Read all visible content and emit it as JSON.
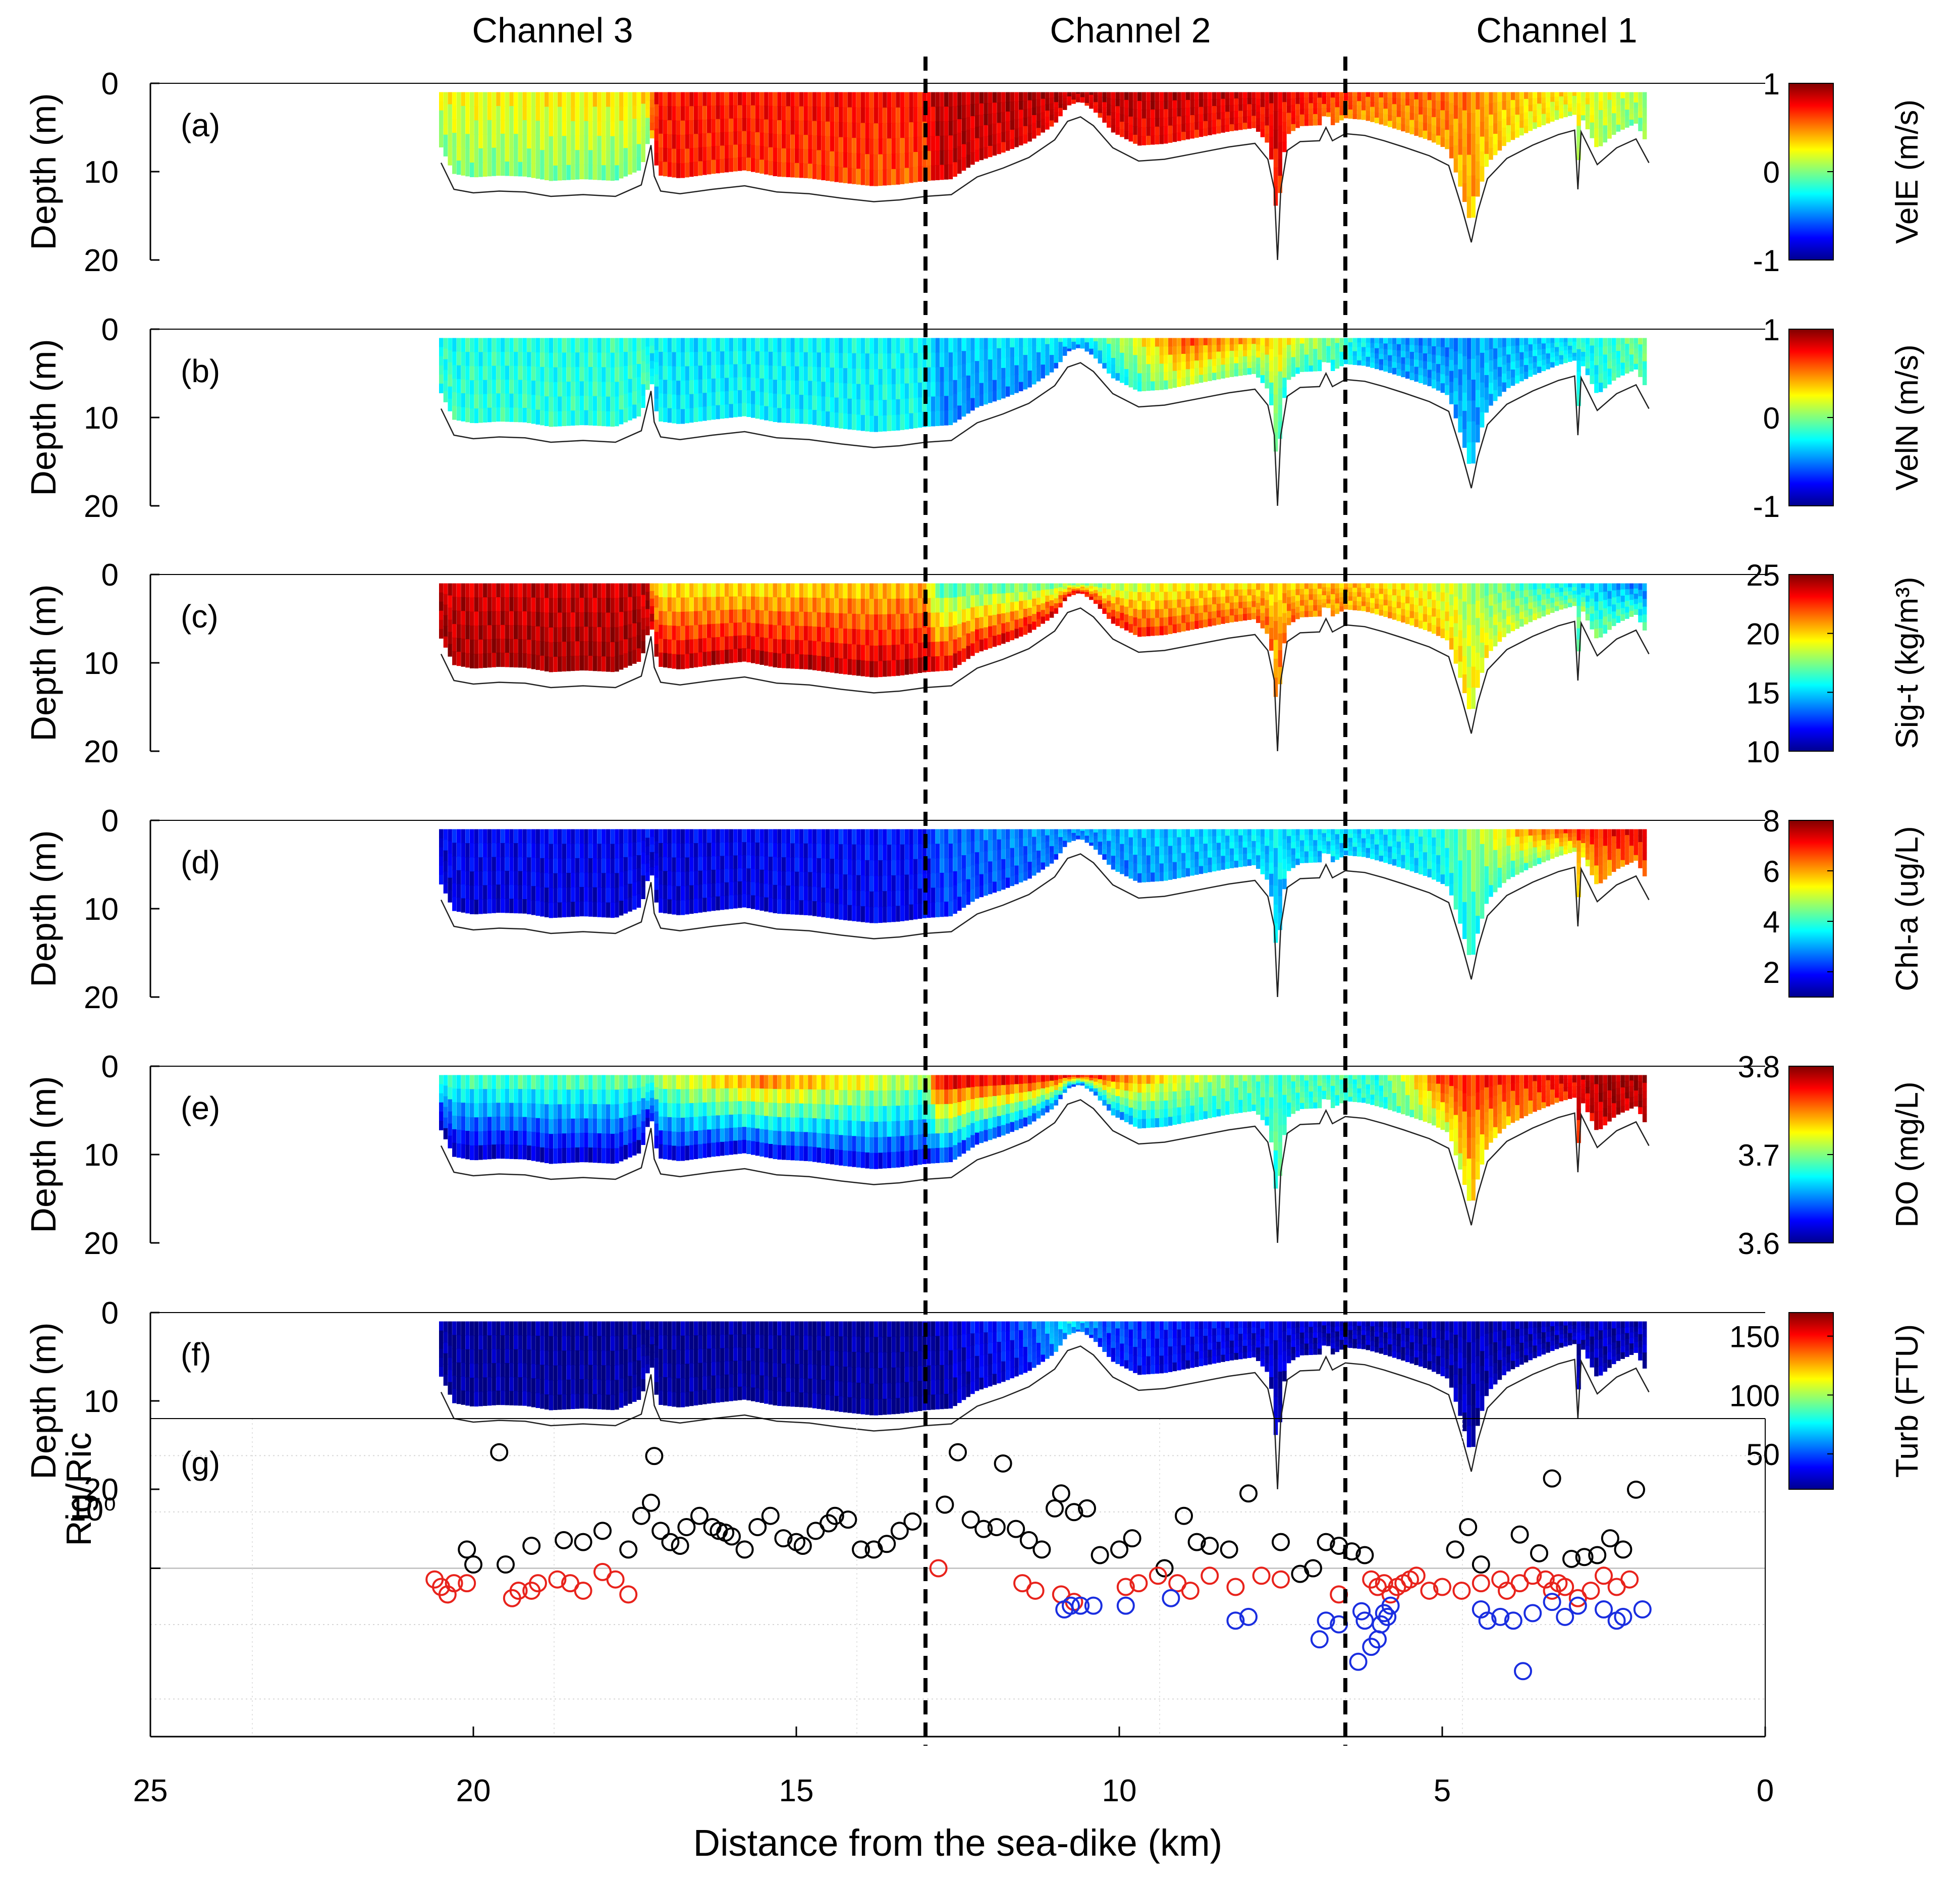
{
  "chart_data": {
    "type": "figure",
    "x_axis": {
      "label": "Distance from the sea-dike (km)",
      "reversed": true,
      "xlim": [
        25,
        0
      ],
      "ticks": [
        25,
        20,
        15,
        10,
        5,
        0
      ]
    },
    "channels": [
      {
        "label": "Channel 3",
        "center_km": 18.6
      },
      {
        "label": "Channel 2",
        "center_km": 9.7
      },
      {
        "label": "Channel 1",
        "center_km": 3.1
      }
    ],
    "boundaries_km": [
      13.0,
      6.5
    ],
    "depth_axis": {
      "label": "Depth (m)",
      "ylim": [
        0,
        20
      ],
      "ticks": [
        0,
        10,
        20
      ],
      "reversed": true
    },
    "data_span_km": [
      20.5,
      1.8
    ],
    "bathymetry": {
      "x_km": [
        20.5,
        20.3,
        20.0,
        19.6,
        19.2,
        18.8,
        18.3,
        17.8,
        17.4,
        17.25,
        17.2,
        17.1,
        16.8,
        16.3,
        15.8,
        15.3,
        14.8,
        14.3,
        13.8,
        13.4,
        13.0,
        12.6,
        12.2,
        11.8,
        11.4,
        11.0,
        10.8,
        10.6,
        10.4,
        10.1,
        9.7,
        9.3,
        8.8,
        8.3,
        7.9,
        7.7,
        7.6,
        7.55,
        7.5,
        7.4,
        7.2,
        6.9,
        6.8,
        6.7,
        6.5,
        6.2,
        5.9,
        5.6,
        5.2,
        4.9,
        4.7,
        4.55,
        4.45,
        4.3,
        4.0,
        3.6,
        3.2,
        2.95,
        2.9,
        2.85,
        2.6,
        2.3,
        2.0,
        1.8
      ],
      "depth_m": [
        9.0,
        12.0,
        12.4,
        12.2,
        12.3,
        12.8,
        12.6,
        12.8,
        11.5,
        7.0,
        10.5,
        12.2,
        12.5,
        12.0,
        11.6,
        12.3,
        12.5,
        13.0,
        13.4,
        13.2,
        12.8,
        12.6,
        10.6,
        9.6,
        8.4,
        6.4,
        4.3,
        3.8,
        4.8,
        7.3,
        8.8,
        8.6,
        7.9,
        7.2,
        6.8,
        8.6,
        12.0,
        21.0,
        12.0,
        7.6,
        6.6,
        6.5,
        5.0,
        6.5,
        5.7,
        5.9,
        6.5,
        7.2,
        8.2,
        9.3,
        14.0,
        18.0,
        14.5,
        10.8,
        8.5,
        7.0,
        5.8,
        5.3,
        12.0,
        5.5,
        9.2,
        7.3,
        6.3,
        9.0
      ]
    },
    "panels": [
      {
        "id": "a",
        "label": "(a)",
        "variable": "VelE",
        "colorbar_label": "VelE (m/s)",
        "clim": [
          -1,
          1
        ],
        "colorbar_ticks": [
          -1,
          0,
          1
        ],
        "colormap": "jet",
        "profile": {
          "x_km": [
            20.5,
            17.3,
            17.2,
            13.0,
            12.8,
            10.5,
            7.6,
            6.6,
            6.0,
            5.0,
            3.5,
            1.8
          ],
          "surface": [
            0.62,
            0.66,
            0.86,
            0.88,
            0.95,
            0.97,
            0.92,
            0.85,
            0.8,
            0.78,
            0.68,
            0.55
          ],
          "bottom": [
            0.5,
            0.48,
            0.86,
            0.78,
            0.92,
            0.88,
            0.85,
            0.74,
            0.7,
            0.72,
            0.6,
            0.48
          ]
        }
      },
      {
        "id": "b",
        "label": "(b)",
        "variable": "VelN",
        "colorbar_label": "VelN (m/s)",
        "clim": [
          -1,
          1
        ],
        "colorbar_ticks": [
          -1,
          0,
          1
        ],
        "colormap": "jet",
        "profile": {
          "x_km": [
            20.5,
            17.3,
            17.2,
            13.0,
            12.8,
            10.5,
            9.0,
            7.6,
            6.6,
            6.0,
            5.0,
            3.5,
            1.8
          ],
          "surface": [
            0.4,
            0.42,
            0.36,
            0.38,
            0.32,
            0.4,
            0.82,
            0.68,
            0.48,
            0.3,
            0.26,
            0.32,
            0.5
          ],
          "bottom": [
            0.42,
            0.4,
            0.36,
            0.38,
            0.25,
            0.24,
            0.55,
            0.4,
            0.4,
            0.28,
            0.3,
            0.32,
            0.45
          ]
        }
      },
      {
        "id": "c",
        "label": "(c)",
        "variable": "Sig-t",
        "colorbar_label": "Sig-t (kg/m³)",
        "clim": [
          10,
          25
        ],
        "colorbar_ticks": [
          10,
          15,
          20,
          25
        ],
        "colormap": "jet",
        "profile": {
          "x_km": [
            20.5,
            17.3,
            17.2,
            13.0,
            12.8,
            10.5,
            9.0,
            7.6,
            6.6,
            6.0,
            5.0,
            3.5,
            1.8
          ],
          "surface": [
            0.92,
            0.93,
            0.62,
            0.68,
            0.42,
            0.48,
            0.62,
            0.66,
            0.7,
            0.66,
            0.58,
            0.4,
            0.22
          ],
          "bottom": [
            0.97,
            0.97,
            0.96,
            0.96,
            0.93,
            0.92,
            0.82,
            0.78,
            0.72,
            0.7,
            0.68,
            0.55,
            0.44
          ]
        }
      },
      {
        "id": "d",
        "label": "(d)",
        "variable": "Chl-a",
        "colorbar_label": "Chl-a (ug/L)",
        "clim": [
          1,
          8
        ],
        "colorbar_ticks": [
          2,
          4,
          6,
          8
        ],
        "colormap": "jet",
        "profile": {
          "x_km": [
            20.5,
            17.3,
            17.2,
            13.0,
            12.8,
            10.5,
            9.0,
            7.6,
            6.6,
            6.0,
            5.0,
            3.5,
            2.5,
            1.8
          ],
          "surface": [
            0.12,
            0.12,
            0.1,
            0.15,
            0.22,
            0.3,
            0.33,
            0.35,
            0.35,
            0.35,
            0.42,
            0.78,
            0.88,
            0.92
          ],
          "bottom": [
            0.08,
            0.08,
            0.08,
            0.1,
            0.16,
            0.22,
            0.28,
            0.32,
            0.33,
            0.33,
            0.36,
            0.45,
            0.7,
            0.8
          ]
        }
      },
      {
        "id": "e",
        "label": "(e)",
        "variable": "DO",
        "colorbar_label": "DO (mg/L)",
        "clim": [
          3.6,
          3.8
        ],
        "colorbar_ticks": [
          3.6,
          3.7,
          3.8
        ],
        "colormap": "jet",
        "profile": {
          "x_km": [
            20.5,
            17.3,
            17.2,
            15.5,
            13.0,
            12.8,
            10.5,
            9.0,
            7.6,
            6.6,
            6.0,
            5.0,
            3.5,
            2.5,
            1.8
          ],
          "surface": [
            0.45,
            0.5,
            0.55,
            0.8,
            0.55,
            0.95,
            0.92,
            0.6,
            0.45,
            0.45,
            0.42,
            0.85,
            0.88,
            0.98,
            0.98
          ],
          "bottom": [
            0.05,
            0.05,
            0.06,
            0.08,
            0.1,
            0.12,
            0.2,
            0.35,
            0.42,
            0.42,
            0.4,
            0.55,
            0.75,
            0.92,
            0.92
          ]
        }
      },
      {
        "id": "f",
        "label": "(f)",
        "variable": "Turb",
        "colorbar_label": "Turb (FTU)",
        "clim": [
          20,
          170
        ],
        "colorbar_ticks": [
          50,
          100,
          150
        ],
        "colormap": "jet",
        "profile": {
          "x_km": [
            20.5,
            13.0,
            12.8,
            11.5,
            10.8,
            10.2,
            9.0,
            7.6,
            6.6,
            5.0,
            3.5,
            1.8
          ],
          "surface": [
            0.02,
            0.02,
            0.06,
            0.2,
            0.38,
            0.22,
            0.14,
            0.1,
            0.06,
            0.05,
            0.05,
            0.06
          ],
          "bottom": [
            0.02,
            0.02,
            0.03,
            0.1,
            0.28,
            0.14,
            0.08,
            0.06,
            0.04,
            0.04,
            0.05,
            0.05
          ]
        }
      }
    ],
    "ri_panel": {
      "label": "(g)",
      "ylabel": "Rig/Ric",
      "yscale": "log",
      "ytick_label": "10⁰",
      "ylim_log10": [
        -0.9,
        0.8
      ],
      "series": [
        {
          "name": "black",
          "color": "#000000",
          "x": [
            19.6,
            20.1,
            20.0,
            19.5,
            19.1,
            18.6,
            18.3,
            18.0,
            17.6,
            17.4,
            17.25,
            17.2,
            17.1,
            16.95,
            16.8,
            16.7,
            16.5,
            16.3,
            16.2,
            16.1,
            16.0,
            15.8,
            15.6,
            15.4,
            15.2,
            15.0,
            14.9,
            14.7,
            14.5,
            14.4,
            14.2,
            14.0,
            13.8,
            13.6,
            13.4,
            13.2,
            12.7,
            12.5,
            12.3,
            12.1,
            11.9,
            11.8,
            11.6,
            11.4,
            11.2,
            11.0,
            10.9,
            10.7,
            10.5,
            10.3,
            10.0,
            9.8,
            9.3,
            9.0,
            8.8,
            8.6,
            8.3,
            8.0,
            7.5,
            7.2,
            7.0,
            6.8,
            6.6,
            6.4,
            6.2,
            4.8,
            4.6,
            4.4,
            3.8,
            3.5,
            3.3,
            3.0,
            2.8,
            2.6,
            2.4,
            2.2,
            2.0
          ],
          "log10_y": [
            0.62,
            0.1,
            0.02,
            0.02,
            0.12,
            0.15,
            0.14,
            0.2,
            0.1,
            0.28,
            0.35,
            0.6,
            0.2,
            0.14,
            0.12,
            0.22,
            0.28,
            0.22,
            0.2,
            0.19,
            0.17,
            0.1,
            0.22,
            0.28,
            0.16,
            0.14,
            0.12,
            0.2,
            0.24,
            0.28,
            0.26,
            0.1,
            0.1,
            0.13,
            0.2,
            0.25,
            0.34,
            0.62,
            0.26,
            0.21,
            0.22,
            0.56,
            0.21,
            0.15,
            0.1,
            0.32,
            0.4,
            0.3,
            0.32,
            0.07,
            0.1,
            0.16,
            0.0,
            0.28,
            0.14,
            0.12,
            0.1,
            0.4,
            0.14,
            -0.03,
            0.0,
            0.14,
            0.12,
            0.09,
            0.07,
            0.1,
            0.22,
            0.02,
            0.18,
            0.08,
            0.48,
            0.05,
            0.06,
            0.07,
            0.16,
            0.1,
            0.42
          ]
        },
        {
          "name": "red",
          "color": "#e8231c",
          "x": [
            20.6,
            20.5,
            20.4,
            20.3,
            20.1,
            19.4,
            19.3,
            19.1,
            19.0,
            18.7,
            18.5,
            18.3,
            18.0,
            17.8,
            17.6,
            12.8,
            11.5,
            11.3,
            10.9,
            10.7,
            9.9,
            9.7,
            9.4,
            9.1,
            8.9,
            8.6,
            8.2,
            7.8,
            7.5,
            6.6,
            6.1,
            6.0,
            5.9,
            5.8,
            5.7,
            5.6,
            5.5,
            5.4,
            5.2,
            5.0,
            4.7,
            4.4,
            4.1,
            4.0,
            3.8,
            3.6,
            3.4,
            3.3,
            3.2,
            3.1,
            2.9,
            2.7,
            2.5,
            2.3,
            2.1
          ],
          "log10_y": [
            -0.06,
            -0.1,
            -0.14,
            -0.08,
            -0.08,
            -0.16,
            -0.12,
            -0.12,
            -0.08,
            -0.06,
            -0.08,
            -0.12,
            -0.02,
            -0.06,
            -0.14,
            0.0,
            -0.08,
            -0.12,
            -0.14,
            -0.18,
            -0.1,
            -0.08,
            -0.04,
            -0.08,
            -0.12,
            -0.04,
            -0.1,
            -0.04,
            -0.06,
            -0.14,
            -0.06,
            -0.1,
            -0.08,
            -0.14,
            -0.1,
            -0.08,
            -0.06,
            -0.04,
            -0.12,
            -0.1,
            -0.12,
            -0.08,
            -0.06,
            -0.12,
            -0.08,
            -0.04,
            -0.06,
            -0.12,
            -0.08,
            -0.1,
            -0.16,
            -0.12,
            -0.04,
            -0.1,
            -0.06
          ]
        },
        {
          "name": "blue",
          "color": "#1a2ee0",
          "x": [
            10.85,
            10.75,
            10.6,
            10.4,
            9.9,
            9.2,
            8.2,
            8.0,
            6.9,
            6.8,
            6.6,
            6.3,
            6.25,
            6.2,
            6.1,
            6.0,
            5.95,
            5.9,
            5.85,
            5.8,
            4.4,
            4.3,
            4.1,
            3.9,
            3.75,
            3.6,
            3.3,
            3.1,
            2.9,
            2.5,
            2.3,
            2.2,
            1.9
          ],
          "log10_y": [
            -0.22,
            -0.2,
            -0.2,
            -0.2,
            -0.2,
            -0.16,
            -0.28,
            -0.26,
            -0.38,
            -0.28,
            -0.3,
            -0.5,
            -0.23,
            -0.28,
            -0.42,
            -0.38,
            -0.3,
            -0.24,
            -0.26,
            -0.2,
            -0.22,
            -0.28,
            -0.26,
            -0.28,
            -0.55,
            -0.24,
            -0.18,
            -0.26,
            -0.2,
            -0.22,
            -0.28,
            -0.26,
            -0.22
          ]
        }
      ]
    }
  }
}
